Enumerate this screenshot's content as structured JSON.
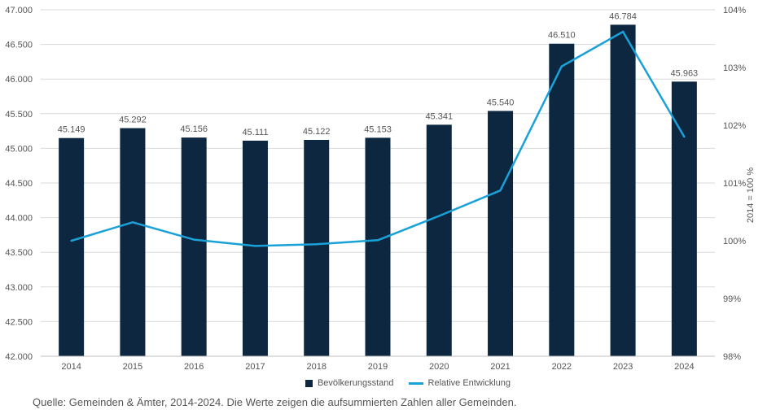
{
  "chart_data": {
    "type": "bar",
    "categories": [
      "2014",
      "2015",
      "2016",
      "2017",
      "2018",
      "2019",
      "2020",
      "2021",
      "2022",
      "2023",
      "2024"
    ],
    "series": [
      {
        "name": "Bevölkerungsstand",
        "type": "bar",
        "values": [
          45149,
          45292,
          45156,
          45111,
          45122,
          45153,
          45341,
          45540,
          46510,
          46784,
          45963
        ],
        "labels": [
          "45.149",
          "45.292",
          "45.156",
          "45.111",
          "45.122",
          "45.153",
          "45.341",
          "45.540",
          "46.510",
          "46.784",
          "45.963"
        ],
        "color": "#0d2741",
        "axis": "left"
      },
      {
        "name": "Relative Entwicklung",
        "type": "line",
        "values": [
          100.0,
          100.32,
          100.02,
          99.91,
          99.94,
          100.01,
          100.43,
          100.87,
          103.02,
          103.62,
          101.8
        ],
        "color": "#1aa1d8",
        "axis": "right"
      }
    ],
    "y_left": {
      "ylim": [
        42000,
        47000
      ],
      "ticks": [
        42000,
        42500,
        43000,
        43500,
        44000,
        44500,
        45000,
        45500,
        46000,
        46500,
        47000
      ],
      "tick_labels": [
        "42.000",
        "42.500",
        "43.000",
        "43.500",
        "44.000",
        "44.500",
        "45.000",
        "45.500",
        "46.000",
        "46.500",
        "47.000"
      ]
    },
    "y_right": {
      "ylim": [
        98,
        104
      ],
      "ticks": [
        98,
        99,
        100,
        101,
        102,
        103,
        104
      ],
      "tick_labels": [
        "98%",
        "99%",
        "100%",
        "101%",
        "102%",
        "103%",
        "104%"
      ],
      "label": "2014 = 100 %"
    },
    "grid": true,
    "legend": "bottom"
  },
  "legend": {
    "bar_label": "Bevölkerungsstand",
    "line_label": "Relative Entwicklung"
  },
  "source": "Quelle: Gemeinden & Ämter, 2014-2024. Die Werte zeigen die aufsummierten Zahlen aller Gemeinden."
}
